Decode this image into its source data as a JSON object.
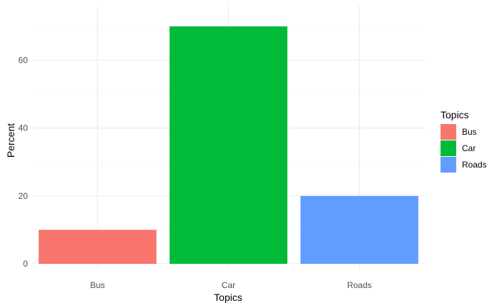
{
  "chart_data": {
    "type": "bar",
    "title": "",
    "xlabel": "Topics",
    "ylabel": "Percent",
    "categories": [
      "Bus",
      "Car",
      "Roads"
    ],
    "values": [
      10,
      70,
      20
    ],
    "colors": [
      "#F8766D",
      "#00BA38",
      "#619CFF"
    ],
    "ylim": [
      0,
      70
    ],
    "yticks": [
      0,
      20,
      40,
      60
    ],
    "grid": true,
    "legend": {
      "title": "Topics",
      "placement": "right",
      "entries": [
        "Bus",
        "Car",
        "Roads"
      ]
    }
  }
}
